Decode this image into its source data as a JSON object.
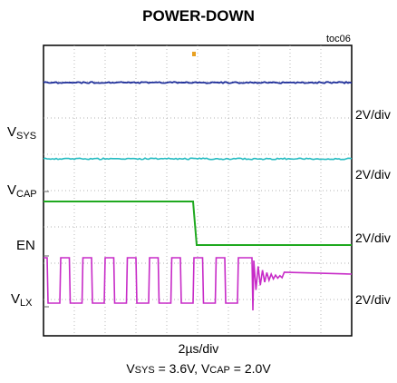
{
  "title": "POWER-DOWN",
  "figure_id": "toc06",
  "chart_data": {
    "type": "line",
    "x_scale": "2µs/div",
    "conditions": {
      "vsys_label": "V",
      "vsys_sub": "SYS",
      "vsys_value": " = 3.6V, ",
      "vcap_label": "V",
      "vcap_sub": "CAP",
      "vcap_value": " = 2.0V"
    },
    "grid": true,
    "divisions": {
      "x": 10,
      "y": 8
    },
    "channels": [
      {
        "label": "V",
        "sub": "SYS",
        "scale": "2V/div",
        "color": "#1f2f9a"
      },
      {
        "label": "V",
        "sub": "CAP",
        "scale": "2V/div",
        "color": "#27bcc2"
      },
      {
        "label": "EN",
        "sub": "",
        "scale": "2V/div",
        "color": "#1fa91f"
      },
      {
        "label": "V",
        "sub": "LX",
        "scale": "2V/div",
        "color": "#c72bc7"
      }
    ]
  }
}
